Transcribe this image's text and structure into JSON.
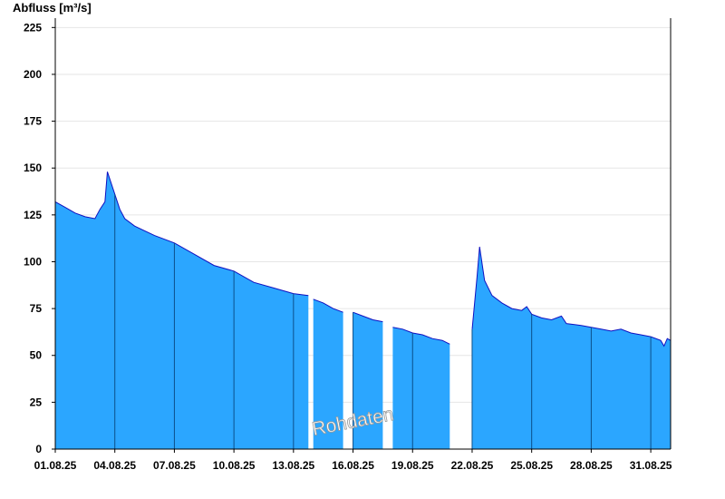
{
  "chart_data": {
    "type": "area",
    "title": "",
    "ylabel": "Abfluss [m³/s]",
    "xlabel": "",
    "ylim": [
      0,
      230
    ],
    "yticks": [
      0,
      25,
      50,
      75,
      100,
      125,
      150,
      175,
      200,
      225
    ],
    "xlim": [
      "2025-08-01T00:00",
      "2025-09-01T00:00"
    ],
    "xtick_labels": [
      "01.08.25",
      "04.08.25",
      "07.08.25",
      "10.08.25",
      "13.08.25",
      "16.08.25",
      "19.08.25",
      "22.08.25",
      "25.08.25",
      "28.08.25",
      "31.08.25"
    ],
    "xtick_dates": [
      "2025-08-01",
      "2025-08-04",
      "2025-08-07",
      "2025-08-10",
      "2025-08-13",
      "2025-08-16",
      "2025-08-19",
      "2025-08-22",
      "2025-08-25",
      "2025-08-28",
      "2025-08-31"
    ],
    "grid": {
      "horizontal": true,
      "vertical": false
    },
    "watermark": "Rohdaten",
    "colors": {
      "fill": "#2ba6ff",
      "line": "#1010c0",
      "divider": "#0b4f8a",
      "grid": "#e6e6e6"
    },
    "series": [
      {
        "segments": [
          [
            [
              "2025-08-01T00:00",
              132
            ],
            [
              "2025-08-01T12:00",
              129
            ],
            [
              "2025-08-02T00:00",
              126
            ],
            [
              "2025-08-02T12:00",
              124
            ],
            [
              "2025-08-03T00:00",
              123
            ],
            [
              "2025-08-03T06:00",
              128
            ],
            [
              "2025-08-03T12:00",
              132
            ],
            [
              "2025-08-03T15:00",
              148
            ],
            [
              "2025-08-03T21:00",
              140
            ],
            [
              "2025-08-04T06:00",
              128
            ],
            [
              "2025-08-04T12:00",
              123
            ],
            [
              "2025-08-05T00:00",
              119
            ],
            [
              "2025-08-06T00:00",
              114
            ],
            [
              "2025-08-07T00:00",
              110
            ],
            [
              "2025-08-08T00:00",
              104
            ],
            [
              "2025-08-09T00:00",
              98
            ],
            [
              "2025-08-10T00:00",
              95
            ],
            [
              "2025-08-11T00:00",
              89
            ],
            [
              "2025-08-12T00:00",
              86
            ],
            [
              "2025-08-13T00:00",
              83
            ],
            [
              "2025-08-13T18:00",
              82
            ]
          ],
          [
            [
              "2025-08-14T00:00",
              80
            ],
            [
              "2025-08-14T12:00",
              78
            ],
            [
              "2025-08-15T00:00",
              75
            ],
            [
              "2025-08-15T12:00",
              73
            ]
          ],
          [
            [
              "2025-08-16T00:00",
              73
            ],
            [
              "2025-08-16T12:00",
              71
            ],
            [
              "2025-08-17T00:00",
              69
            ],
            [
              "2025-08-17T12:00",
              68
            ]
          ],
          [
            [
              "2025-08-18T00:00",
              65
            ],
            [
              "2025-08-18T12:00",
              64
            ],
            [
              "2025-08-19T00:00",
              62
            ],
            [
              "2025-08-19T12:00",
              61
            ],
            [
              "2025-08-20T00:00",
              59
            ],
            [
              "2025-08-20T12:00",
              58
            ],
            [
              "2025-08-20T21:00",
              56
            ]
          ],
          [
            [
              "2025-08-22T00:00",
              64
            ],
            [
              "2025-08-22T06:00",
              92
            ],
            [
              "2025-08-22T09:00",
              108
            ],
            [
              "2025-08-22T15:00",
              90
            ],
            [
              "2025-08-23T00:00",
              82
            ],
            [
              "2025-08-23T12:00",
              78
            ],
            [
              "2025-08-24T00:00",
              75
            ],
            [
              "2025-08-24T12:00",
              74
            ],
            [
              "2025-08-24T18:00",
              76
            ],
            [
              "2025-08-25T00:00",
              72
            ],
            [
              "2025-08-25T12:00",
              70
            ],
            [
              "2025-08-26T00:00",
              69
            ],
            [
              "2025-08-26T12:00",
              71
            ],
            [
              "2025-08-26T18:00",
              67
            ],
            [
              "2025-08-27T12:00",
              66
            ],
            [
              "2025-08-28T00:00",
              65
            ],
            [
              "2025-08-28T12:00",
              64
            ],
            [
              "2025-08-29T00:00",
              63
            ],
            [
              "2025-08-29T12:00",
              64
            ],
            [
              "2025-08-30T00:00",
              62
            ],
            [
              "2025-08-30T12:00",
              61
            ],
            [
              "2025-08-31T00:00",
              60
            ],
            [
              "2025-08-31T12:00",
              58
            ],
            [
              "2025-08-31T16:00",
              55
            ],
            [
              "2025-08-31T20:00",
              59
            ],
            [
              "2025-09-01T00:00",
              58
            ]
          ]
        ]
      }
    ]
  }
}
